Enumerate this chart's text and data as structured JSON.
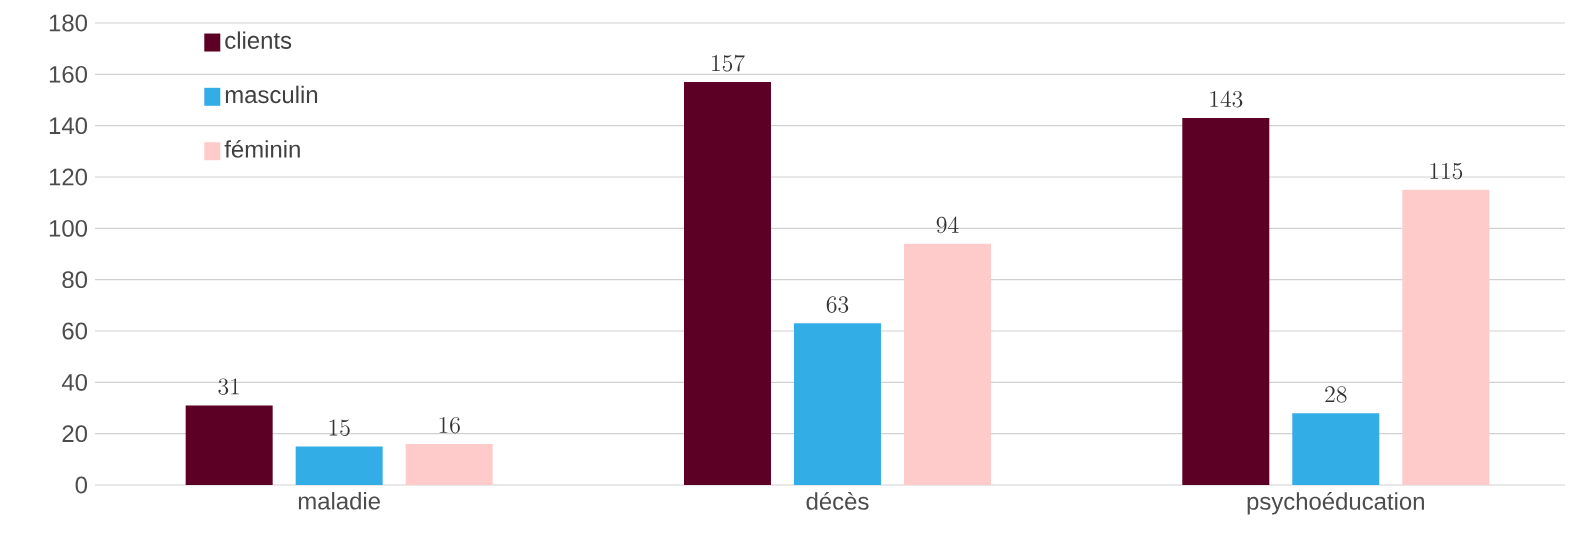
{
  "chart_data": {
    "type": "bar",
    "categories": [
      "maladie",
      "décès",
      "psychoéducation"
    ],
    "series": [
      {
        "name": "clients",
        "color": "#5c0025",
        "values": [
          31,
          157,
          143
        ]
      },
      {
        "name": "masculin",
        "color": "#33ade6",
        "values": [
          15,
          63,
          28
        ]
      },
      {
        "name": "féminin",
        "color": "#fecbca",
        "values": [
          16,
          94,
          115
        ]
      }
    ],
    "ylim": [
      0,
      180
    ],
    "yticks": [
      0,
      20,
      40,
      60,
      80,
      100,
      120,
      140,
      160,
      180
    ],
    "grid": "y",
    "legend": "top left",
    "data_labels": true
  }
}
